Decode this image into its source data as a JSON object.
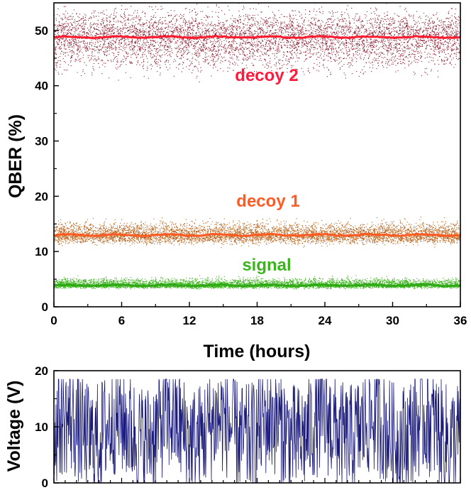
{
  "chart_data": [
    {
      "type": "scatter",
      "title": "",
      "xlabel": "Time (hours)",
      "ylabel": "QBER (%)",
      "xlim": [
        0,
        36
      ],
      "ylim": [
        0,
        55
      ],
      "x_ticks": [
        "0",
        "6",
        "12",
        "18",
        "24",
        "30",
        "36"
      ],
      "y_ticks": [
        "0",
        "10",
        "20",
        "30",
        "40",
        "50"
      ],
      "series": [
        {
          "name": "decoy 2",
          "mean": 48.8,
          "spread_low": 41,
          "spread_high": 55,
          "scatter_color": "#8b1a2b",
          "line_color": "#ff1a2e",
          "label_color": "#ff1a3c"
        },
        {
          "name": "decoy 1",
          "mean": 13.0,
          "spread_low": 11,
          "spread_high": 16,
          "scatter_color": "#b8621a",
          "line_color": "#ff5a22",
          "label_color": "#ff5a22"
        },
        {
          "name": "signal",
          "mean": 3.9,
          "spread_low": 3.2,
          "spread_high": 5.5,
          "scatter_color": "#3cb41e",
          "line_color": "#2ea814",
          "label_color": "#3cb41e"
        }
      ]
    },
    {
      "type": "line",
      "title": "",
      "xlabel": "",
      "ylabel": "Voltage (V)",
      "xlim": [
        0,
        36
      ],
      "ylim": [
        0,
        20
      ],
      "y_ticks": [
        "0",
        "10",
        "20"
      ],
      "series": [
        {
          "name": "voltage",
          "color": "#1a1a7a",
          "min": 0,
          "max": 18.5,
          "mean": 9.5,
          "samples": 1000
        }
      ]
    }
  ]
}
